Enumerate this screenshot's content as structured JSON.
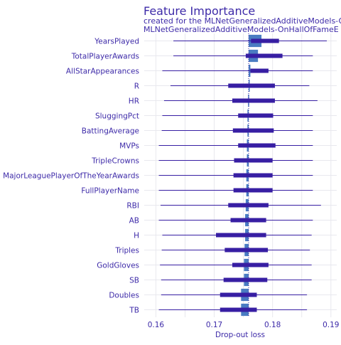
{
  "chart_data": {
    "type": "bar",
    "title": "Feature Importance",
    "subtitle": "created for the MLNetGeneralizedAdditiveModels-OnHallOfFame",
    "panel_label": "MLNetGeneralizedAdditiveModels-OnHallOfFameE",
    "xlabel": "Drop-out loss",
    "xlim": [
      0.158,
      0.191
    ],
    "x_ticks": [
      0.16,
      0.17,
      0.18,
      0.19
    ],
    "x_tick_labels": [
      "0.16",
      "0.17",
      "0.18",
      "0.19"
    ],
    "baseline": 0.1759,
    "grid": true,
    "colors": {
      "bar": "#4a7cc2",
      "boxplot": "#371ea3",
      "text": "#3d2aa8",
      "grid": "#e8e8ee"
    },
    "features": [
      {
        "name": "YearsPlayed",
        "value": 0.1781,
        "whisker": [
          0.163,
          0.1893
        ],
        "box": [
          0.1763,
          0.1811
        ]
      },
      {
        "name": "TotalPlayerAwards",
        "value": 0.1775,
        "whisker": [
          0.163,
          0.1869
        ],
        "box": [
          0.1754,
          0.1817
        ]
      },
      {
        "name": "AllStarAppearances",
        "value": 0.1762,
        "whisker": [
          0.1611,
          0.1869
        ],
        "box": [
          0.1762,
          0.1793
        ]
      },
      {
        "name": "R",
        "value": 0.176,
        "whisker": [
          0.1625,
          0.1863
        ],
        "box": [
          0.1724,
          0.1804
        ]
      },
      {
        "name": "HR",
        "value": 0.1758,
        "whisker": [
          0.1614,
          0.1877
        ],
        "box": [
          0.1731,
          0.1804
        ]
      },
      {
        "name": "SluggingPct",
        "value": 0.1757,
        "whisker": [
          0.1611,
          0.1869
        ],
        "box": [
          0.1741,
          0.1801
        ]
      },
      {
        "name": "BattingAverage",
        "value": 0.1757,
        "whisker": [
          0.161,
          0.1869
        ],
        "box": [
          0.1732,
          0.1802
        ]
      },
      {
        "name": "MVPs",
        "value": 0.1756,
        "whisker": [
          0.1605,
          0.1869
        ],
        "box": [
          0.1741,
          0.1805
        ]
      },
      {
        "name": "TripleCrowns",
        "value": 0.1756,
        "whisker": [
          0.1605,
          0.1869
        ],
        "box": [
          0.1734,
          0.18
        ]
      },
      {
        "name": "MajorLeaguePlayerOfTheYearAwards",
        "value": 0.1755,
        "whisker": [
          0.1605,
          0.1869
        ],
        "box": [
          0.1733,
          0.18
        ]
      },
      {
        "name": "FullPlayerName",
        "value": 0.1755,
        "whisker": [
          0.1605,
          0.1869
        ],
        "box": [
          0.1733,
          0.18
        ]
      },
      {
        "name": "RBI",
        "value": 0.1754,
        "whisker": [
          0.1608,
          0.1883
        ],
        "box": [
          0.1724,
          0.1793
        ]
      },
      {
        "name": "AB",
        "value": 0.1753,
        "whisker": [
          0.1605,
          0.1869
        ],
        "box": [
          0.1728,
          0.1789
        ]
      },
      {
        "name": "H",
        "value": 0.1753,
        "whisker": [
          0.1611,
          0.1867
        ],
        "box": [
          0.1703,
          0.1789
        ]
      },
      {
        "name": "Triples",
        "value": 0.1752,
        "whisker": [
          0.161,
          0.1864
        ],
        "box": [
          0.1718,
          0.1792
        ]
      },
      {
        "name": "GoldGloves",
        "value": 0.1751,
        "whisker": [
          0.1607,
          0.1867
        ],
        "box": [
          0.1731,
          0.1793
        ]
      },
      {
        "name": "SB",
        "value": 0.1751,
        "whisker": [
          0.1609,
          0.1867
        ],
        "box": [
          0.1716,
          0.1791
        ]
      },
      {
        "name": "Doubles",
        "value": 0.1746,
        "whisker": [
          0.1609,
          0.1859
        ],
        "box": [
          0.171,
          0.1773
        ]
      },
      {
        "name": "TB",
        "value": 0.1746,
        "whisker": [
          0.1605,
          0.1859
        ],
        "box": [
          0.171,
          0.1773
        ]
      }
    ]
  }
}
